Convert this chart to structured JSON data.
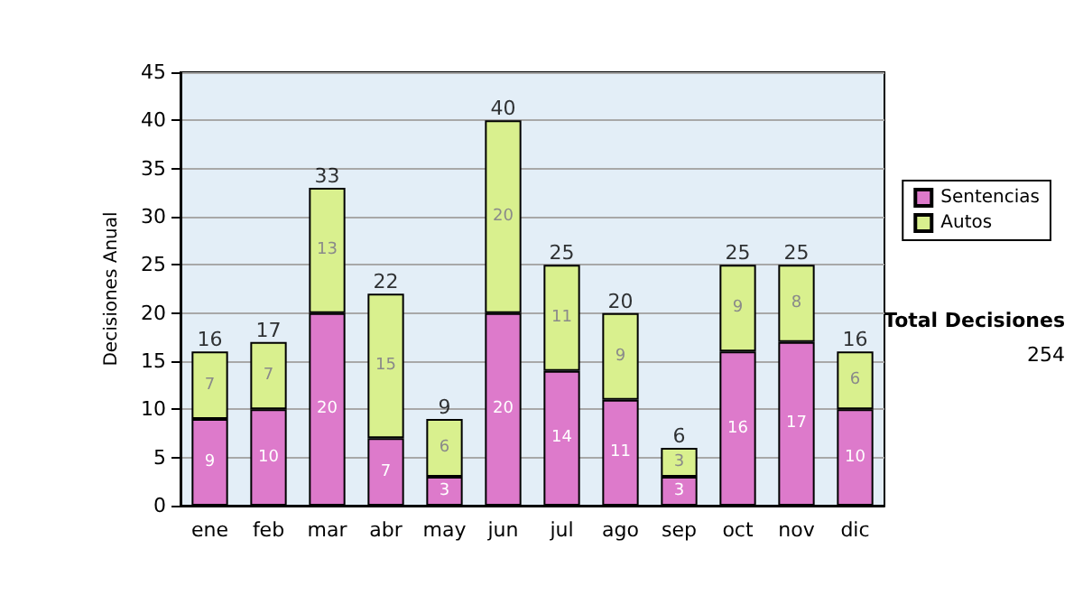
{
  "chart_data": {
    "type": "bar",
    "stacked": true,
    "ylabel": "Decisiones Anual",
    "categories": [
      "ene",
      "feb",
      "mar",
      "abr",
      "may",
      "jun",
      "jul",
      "ago",
      "sep",
      "oct",
      "nov",
      "dic"
    ],
    "series": [
      {
        "name": "Sentencias",
        "color": "#dd7acb",
        "values": [
          9,
          10,
          20,
          7,
          3,
          20,
          14,
          11,
          3,
          16,
          17,
          10
        ]
      },
      {
        "name": "Autos",
        "color": "#d9f08e",
        "values": [
          7,
          7,
          13,
          15,
          6,
          20,
          11,
          9,
          3,
          9,
          8,
          6
        ]
      }
    ],
    "totals": [
      "16",
      "17",
      "33",
      "22",
      "9",
      "40",
      "25",
      "20",
      "6",
      "25",
      "25",
      "16"
    ],
    "data_labels": true,
    "ylim": [
      0,
      45
    ],
    "yticks": [
      0,
      5,
      10,
      15,
      20,
      25,
      30,
      35,
      40,
      45
    ],
    "grid": "y",
    "legend": "right",
    "annotations": [
      "Total Decisiones",
      "254"
    ]
  }
}
